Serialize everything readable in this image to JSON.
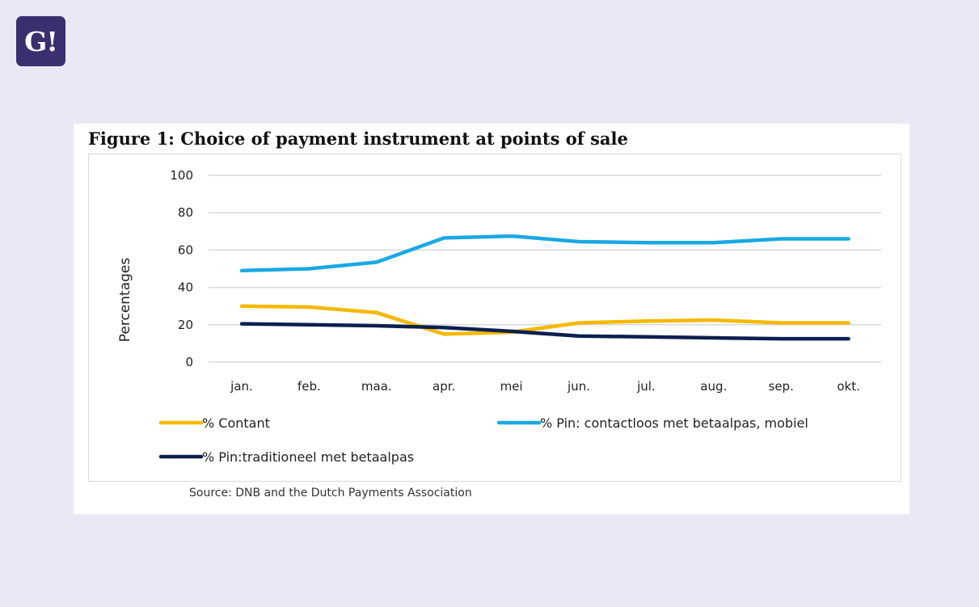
{
  "brand": {
    "logo_text": "G!",
    "logo_color": "#3c2f70"
  },
  "figure": {
    "title": "Figure 1: Choice of payment instrument at points of sale",
    "source": "Source: DNB and the Dutch Payments Association"
  },
  "chart_data": {
    "type": "line",
    "title": "Figure 1: Choice of payment instrument at points of sale",
    "xlabel": "",
    "ylabel": "Percentages",
    "ylim": [
      0,
      100
    ],
    "yticks": [
      0,
      20,
      40,
      60,
      80,
      100
    ],
    "grid": true,
    "legend_position": "bottom",
    "categories": [
      "jan.",
      "feb.",
      "maa.",
      "apr.",
      "mei",
      "jun.",
      "jul.",
      "aug.",
      "sep.",
      "okt."
    ],
    "series": [
      {
        "name": "% Contant",
        "color": "#f5b800",
        "values": [
          30,
          29.5,
          26.5,
          15,
          16,
          21,
          22,
          22.5,
          21,
          21
        ]
      },
      {
        "name": "% Pin: contactloos met betaalpas, mobiel",
        "color": "#1aa8e3",
        "values": [
          49,
          50,
          53.5,
          66.5,
          67.5,
          64.5,
          64,
          64,
          66,
          66
        ]
      },
      {
        "name": "% Pin:traditioneel met betaalpas",
        "color": "#0d1f4f",
        "values": [
          20.5,
          20,
          19.5,
          18.5,
          16.5,
          14,
          13.5,
          13,
          12.5,
          12.5
        ]
      }
    ]
  }
}
